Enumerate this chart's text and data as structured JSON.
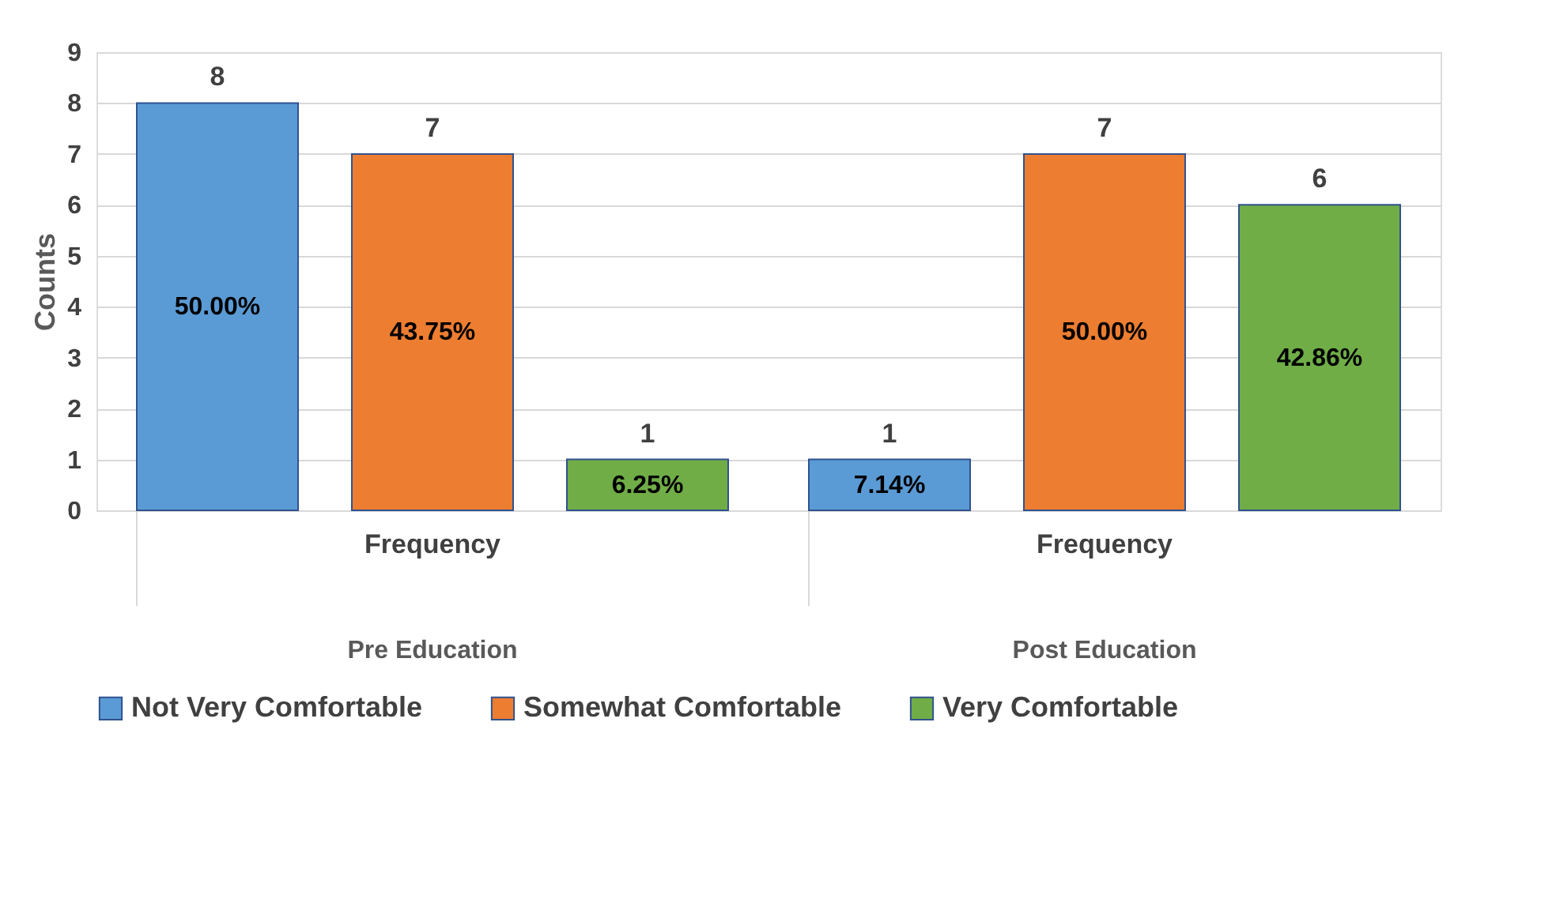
{
  "chart_data": {
    "type": "bar",
    "ylabel": "Counts",
    "categories": [
      "Pre Education",
      "Post Education"
    ],
    "series": [
      {
        "name": "Not Very Comfortable",
        "color": "#5b9bd5",
        "values": [
          8,
          1
        ]
      },
      {
        "name": "Somewhat Comfortable",
        "color": "#ed7d31",
        "values": [
          7,
          7
        ]
      },
      {
        "name": "Very Comfortable",
        "color": "#70ad47",
        "values": [
          1,
          6
        ]
      }
    ],
    "annotations": [
      "Frequency",
      "Frequency",
      "50.00%",
      "43.75%",
      "6.25%",
      "7.14%",
      "50.00%",
      "42.86%"
    ],
    "ylim": [
      0,
      9
    ],
    "yticks": [
      0,
      1,
      2,
      3,
      4,
      5,
      6,
      7,
      8,
      9
    ],
    "grid": "y",
    "legend": "bottom",
    "data_labels": true
  }
}
